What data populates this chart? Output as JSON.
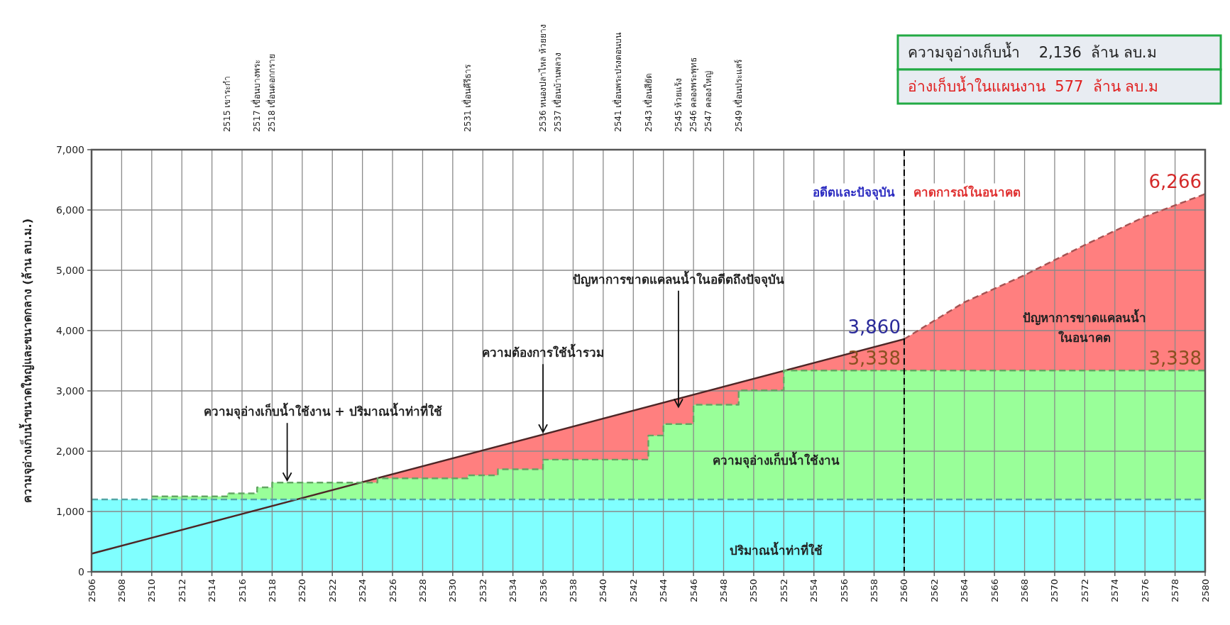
{
  "chart_data": {
    "type": "area",
    "ylabel": "ความจุอ่างเก็บน้ำขนาดใหญ่และขนาดกลาง (ล้าน ลบ.ม.)",
    "xlim": [
      2506,
      2580
    ],
    "xticks": [
      2506,
      2508,
      2510,
      2512,
      2514,
      2516,
      2518,
      2520,
      2522,
      2524,
      2526,
      2528,
      2530,
      2532,
      2534,
      2536,
      2538,
      2540,
      2542,
      2544,
      2546,
      2548,
      2550,
      2552,
      2554,
      2556,
      2558,
      2560,
      2562,
      2564,
      2566,
      2568,
      2570,
      2572,
      2574,
      2576,
      2578,
      2580
    ],
    "ylim": [
      0,
      7000
    ],
    "yticks": [
      0,
      {
        "value": 1000,
        "label": "1,000"
      },
      {
        "value": 2000,
        "label": "2,000"
      },
      {
        "value": 3000,
        "label": "3,000"
      },
      {
        "value": 4000,
        "label": "4,000"
      },
      {
        "value": 5000,
        "label": "5,000"
      },
      {
        "value": 6000,
        "label": "6,000"
      },
      {
        "value": 7000,
        "label": "7,000"
      }
    ],
    "grid": true,
    "series": [
      {
        "color": "#ff7f7f",
        "line_style": "solid",
        "x": [
          2506,
          2560
        ],
        "values": [
          300,
          3860
        ],
        "value_labels": [
          null,
          "3,860"
        ]
      },
      {
        "color": "#ff7f7f",
        "line_style": "dashed",
        "x": [
          2560,
          2564,
          2568,
          2572,
          2576,
          2580
        ],
        "values": [
          3860,
          4470,
          4920,
          5420,
          5890,
          6266
        ],
        "value_labels": [
          null,
          null,
          null,
          null,
          null,
          "6,266"
        ]
      },
      {
        "color": "#99ff99",
        "line_style": "dashed",
        "x": [
          2510,
          2515,
          2515,
          2517,
          2517,
          2518,
          2518,
          2525,
          2525,
          2531,
          2531,
          2533,
          2533,
          2536,
          2536,
          2543,
          2543,
          2544,
          2544,
          2546,
          2546,
          2549,
          2549,
          2552,
          2552,
          2560,
          2580
        ],
        "values": [
          1250,
          1250,
          1300,
          1300,
          1400,
          1400,
          1480,
          1480,
          1550,
          1550,
          1600,
          1600,
          1700,
          1700,
          1860,
          1860,
          2260,
          2260,
          2450,
          2450,
          2770,
          2770,
          3010,
          3010,
          3338,
          3338,
          3338
        ],
        "value_labels": [
          null,
          null,
          null,
          null,
          null,
          null,
          null,
          null,
          null,
          null,
          null,
          null,
          null,
          null,
          null,
          null,
          null,
          null,
          null,
          null,
          null,
          null,
          null,
          null,
          null,
          "3,338",
          "3,338"
        ]
      },
      {
        "color": "#80ffff",
        "line_style": "dashed",
        "x": [
          2506,
          2580
        ],
        "values": [
          1200,
          1200
        ]
      }
    ],
    "ref_lines": [
      {
        "axis": "x",
        "value": 2560,
        "color": "#000000",
        "line_style": "dashed"
      }
    ],
    "annotations": [
      "ความจุอ่างเก็บน้ำ    2,136  ล้าน ลบ.ม",
      "อ่างเก็บน้ำในแผนงาน  577  ล้าน ลบ.ม",
      "2515 เขาระกำ",
      "2517 เขื่อนบางพระ",
      "2518 เขื่อนดอกกราย",
      "2531 เขื่อนคีรีธาร",
      "2536 หนองปลาไหล ห้วยยาง",
      "2537 เขื่อนบ้านพลวง",
      "2541 เขื่อนพระปรงตอนบน",
      "2543 เขื่อนสียัด",
      "2545 ห้วยแร้ง",
      "2546 คลองพระพุทธ",
      "2547 คลองใหญ่",
      "2549 เขื่อนประแสร์",
      {
        "text": "ความจุอ่างเก็บน้ำใช้งาน + ปริมาณน้ำท่าที่ใช้",
        "x": 2519,
        "y": 1480
      },
      {
        "text": "ความต้องการใช้น้ำรวม",
        "x": 2536,
        "y": 2280
      },
      "ปัญหาการขาดแคลนน้ำในอดีตถึงปัจจุบัน",
      "ความจุอ่างเก็บน้ำใช้งาน",
      "ปัญหาการขาดแคลนน้ำ\nในอนาคต",
      "ปริมาณน้ำท่าที่ใช้",
      "อดีตและปัจจุบัน",
      "คาดการณ์ในอนาคต"
    ]
  }
}
